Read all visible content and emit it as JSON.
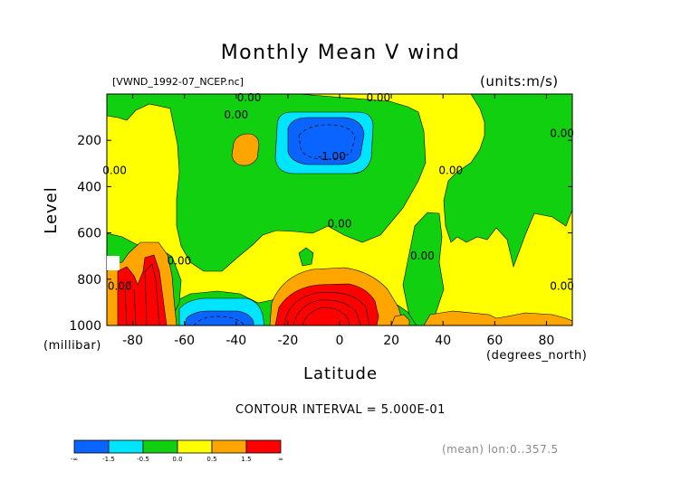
{
  "chart_data": {
    "type": "heatmap",
    "title": "Monthly Mean V wind",
    "source_file": "[VWND_1992-07_NCEP.nc]",
    "units_label": "(units:m/s)",
    "xlabel": "Latitude",
    "x_unit": "(degrees_north)",
    "ylabel": "Level",
    "y_unit": "(millibar)",
    "xlim": [
      -90,
      90
    ],
    "ylim": [
      1000,
      0
    ],
    "x_ticks": [
      -80,
      -60,
      -40,
      -20,
      0,
      20,
      40,
      60,
      80
    ],
    "y_ticks": [
      200,
      400,
      600,
      800,
      1000
    ],
    "contour_interval_text": "CONTOUR INTERVAL = 5.000E-01",
    "averaging_note": "(mean) lon:0..357.5",
    "contour_labels": [
      {
        "text": "0.00",
        "lat": -40,
        "level": 90
      },
      {
        "text": "0.00",
        "lat": -35,
        "level": 15
      },
      {
        "text": "0.00",
        "lat": 15,
        "level": 15
      },
      {
        "text": "-1.00",
        "lat": -3,
        "level": 270
      },
      {
        "text": "0.00",
        "lat": -87,
        "level": 330
      },
      {
        "text": "0.00",
        "lat": 0,
        "level": 560
      },
      {
        "text": "0.00",
        "lat": 43,
        "level": 330
      },
      {
        "text": "0.00",
        "lat": 86,
        "level": 170
      },
      {
        "text": "0.00",
        "lat": 32,
        "level": 700
      },
      {
        "text": "0.00",
        "lat": -62,
        "level": 720
      },
      {
        "text": "0.00",
        "lat": -85,
        "level": 830
      },
      {
        "text": "0.00",
        "lat": 86,
        "level": 830
      }
    ],
    "colorbar": {
      "colors": [
        "#0a64ff",
        "#00e5ff",
        "#10d010",
        "#ffff00",
        "#ffa500",
        "#ff0000"
      ],
      "labels": [
        "-∞",
        "-1.5",
        "-0.5",
        "0.0",
        "0.5",
        "1.5",
        "∞"
      ]
    }
  },
  "colors": {
    "neg_strong": "#0a64ff",
    "neg": "#00e5ff",
    "near_zero_neg": "#10d010",
    "near_zero_pos": "#ffff00",
    "pos": "#ffa500",
    "pos_strong": "#ff0000"
  }
}
